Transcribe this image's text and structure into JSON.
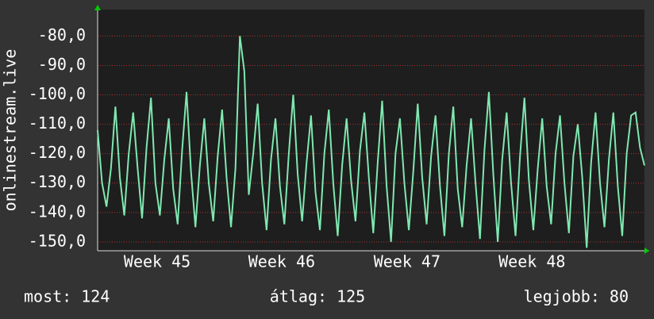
{
  "chart_data": {
    "type": "line",
    "ylabel": "onlinestream.live",
    "values": [
      -112,
      -130,
      -138,
      -125,
      -104,
      -128,
      -141,
      -120,
      -106,
      -125,
      -142,
      -118,
      -101,
      -130,
      -141,
      -122,
      -108,
      -132,
      -144,
      -119,
      -99,
      -126,
      -145,
      -124,
      -108,
      -130,
      -143,
      -121,
      -105,
      -128,
      -145,
      -125,
      -80,
      -92,
      -134,
      -120,
      -103,
      -130,
      -146,
      -122,
      -108,
      -131,
      -144,
      -120,
      -100,
      -127,
      -143,
      -123,
      -107,
      -133,
      -146,
      -120,
      -105,
      -130,
      -148,
      -124,
      -108,
      -129,
      -143,
      -119,
      -106,
      -128,
      -147,
      -123,
      -102,
      -131,
      -150,
      -120,
      -108,
      -130,
      -146,
      -126,
      -103,
      -128,
      -144,
      -121,
      -107,
      -131,
      -148,
      -120,
      -104,
      -132,
      -145,
      -124,
      -108,
      -130,
      -149,
      -119,
      -99,
      -127,
      -150,
      -122,
      -106,
      -130,
      -148,
      -121,
      -101,
      -129,
      -146,
      -125,
      -108,
      -131,
      -144,
      -120,
      -107,
      -130,
      -147,
      -121,
      -110,
      -128,
      -152,
      -123,
      -106,
      -130,
      -145,
      -122,
      -106,
      -131,
      -148,
      -120,
      -107,
      -106,
      -118,
      -124
    ],
    "color": "#7fe8b0",
    "xlim": [
      0,
      123
    ],
    "xticks": [
      {
        "value": 13.4,
        "label": "Week 45"
      },
      {
        "value": 41.4,
        "label": "Week 46"
      },
      {
        "value": 69.6,
        "label": "Week 47"
      },
      {
        "value": 97.7,
        "label": "Week 48"
      }
    ],
    "ylim": [
      -153,
      -71
    ],
    "yticks": [
      {
        "value": -150,
        "label": "-150,0"
      },
      {
        "value": -140,
        "label": "-140,0"
      },
      {
        "value": -130,
        "label": "-130,0"
      },
      {
        "value": -120,
        "label": "-120,0"
      },
      {
        "value": -110,
        "label": "-110,0"
      },
      {
        "value": -100,
        "label": "-100,0"
      },
      {
        "value": -90,
        "label": "-90,0"
      },
      {
        "value": -80,
        "label": "-80,0"
      }
    ],
    "grid": true,
    "footer": [
      "most: 124",
      "átlag: 125",
      "legjobb: 80"
    ]
  }
}
